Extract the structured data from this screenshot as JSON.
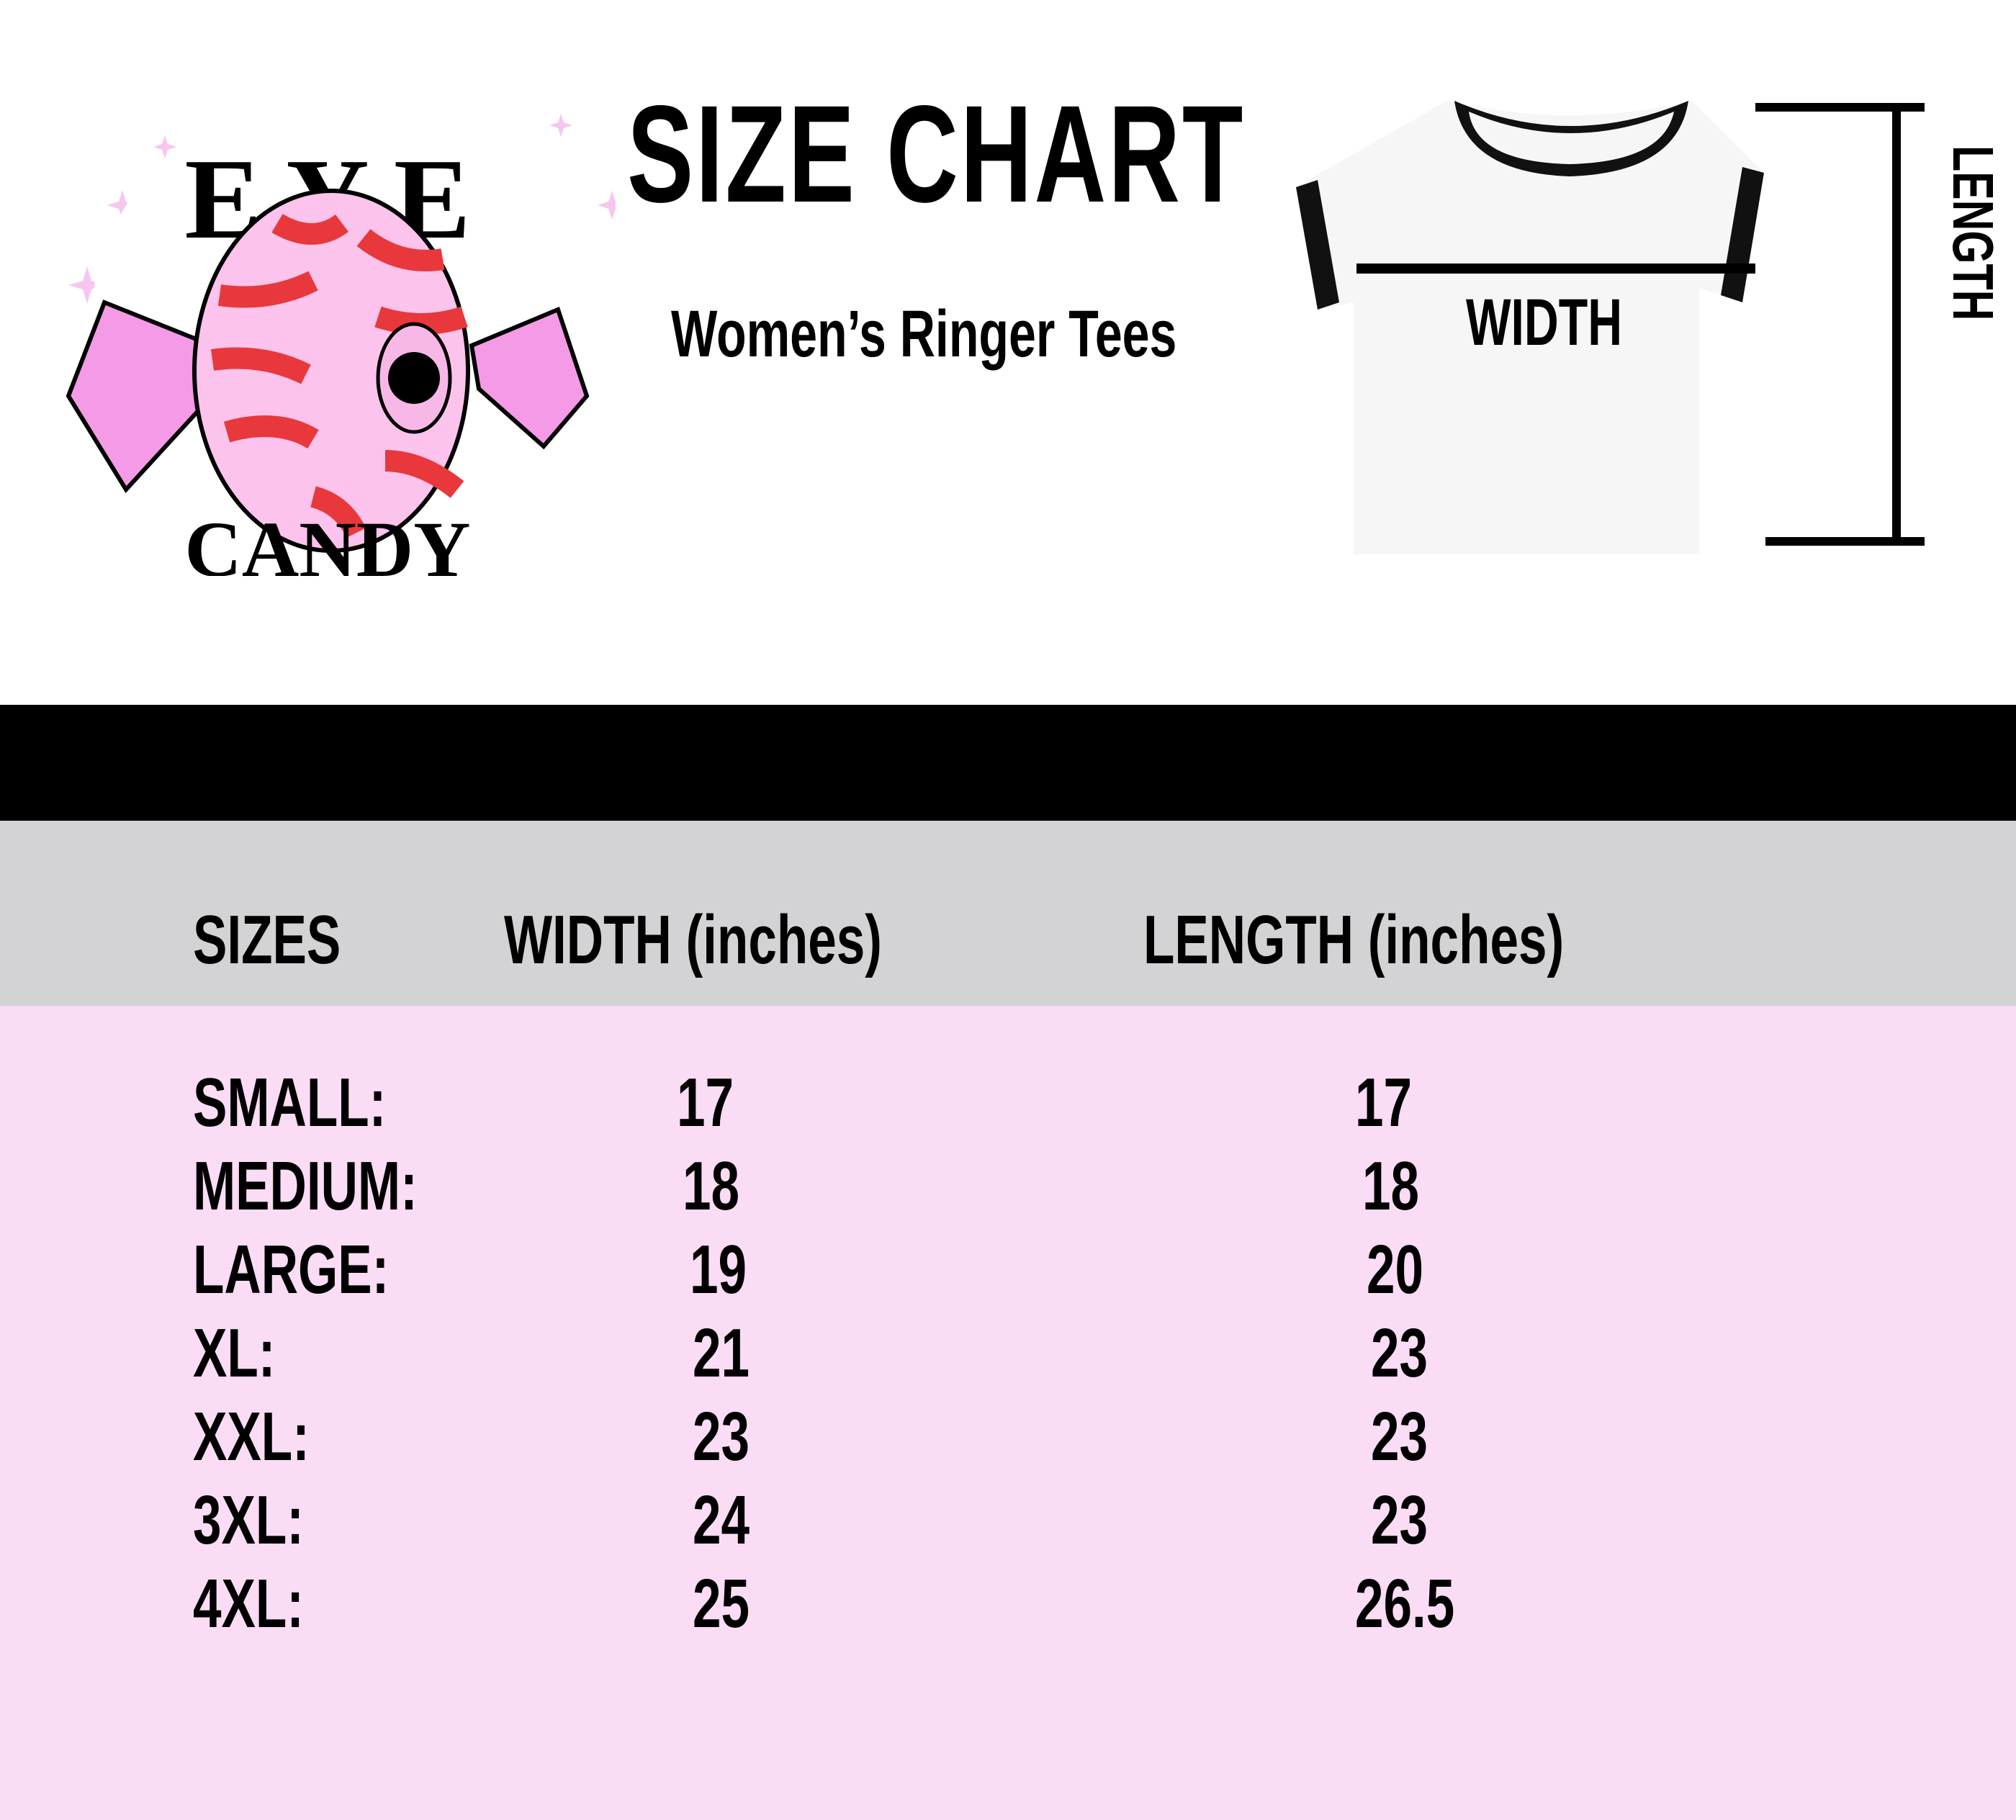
{
  "logo": {
    "text": "EYE CANDY",
    "colors": {
      "pink": "#f59ae6",
      "red": "#e8383c",
      "light_pink": "#fcc3ec"
    }
  },
  "header": {
    "title": "SIZE CHART",
    "subtitle": "Women’s Ringer Tees"
  },
  "diagram": {
    "width_label": "WIDTH",
    "length_label": "LENGTH"
  },
  "table": {
    "columns": [
      "SIZES",
      "WIDTH  (inches)",
      "LENGTH  (inches)"
    ],
    "rows": [
      {
        "size": "SMALL:",
        "width": "17",
        "length": "17"
      },
      {
        "size": "MEDIUM:",
        "width": "18",
        "length": "18"
      },
      {
        "size": "LARGE:",
        "width": "19",
        "length": "20"
      },
      {
        "size": "XL:",
        "width": "21",
        "length": "23"
      },
      {
        "size": "XXL:",
        "width": "23",
        "length": "23"
      },
      {
        "size": "3XL:",
        "width": "24",
        "length": "23"
      },
      {
        "size": "4XL:",
        "width": "25",
        "length": "26.5"
      }
    ]
  },
  "colors": {
    "header_bg": "#d3d2d4",
    "body_bg": "#fadcf4",
    "band": "#000000"
  }
}
